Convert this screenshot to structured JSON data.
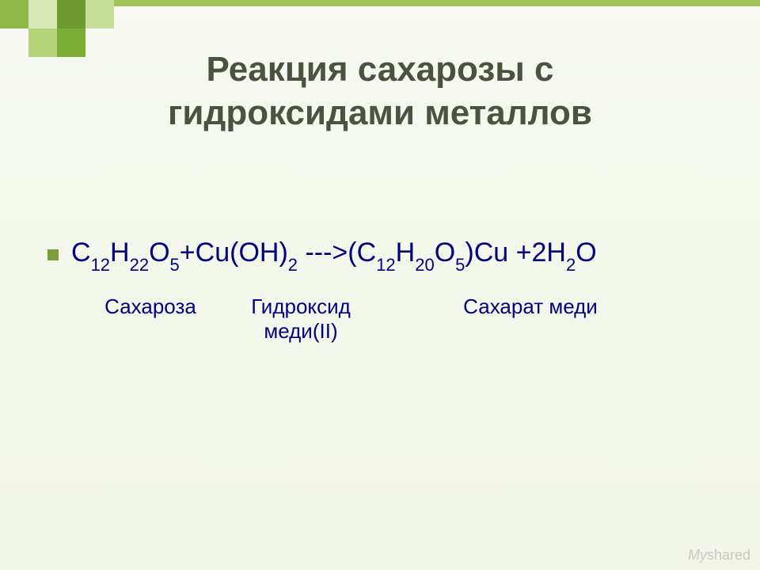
{
  "title_line1": "Реакция сахарозы с",
  "title_line2": "гидроксидами металлов",
  "equation": {
    "parts": {
      "c1": "С",
      "s1": "12",
      "h1": "Н",
      "s2": "22",
      "o1": "О",
      "s3": "5",
      "plus1": "+Cu(OH)",
      "s4": "2",
      "arrow": " --->(",
      "c2": "С",
      "s5": "12",
      "h2": "Н",
      "s6": "20",
      "o2": "О",
      "s7": "5",
      "close": ")Cu +2H",
      "s8": "2",
      "o3": "O"
    }
  },
  "labels": {
    "sucrose": "Сахароза",
    "hydroxide_l1": "Гидроксид",
    "hydroxide_l2": "меди(II)",
    "saccharate": "Сахарат меди"
  },
  "watermark": {
    "my": "My",
    "shared": "shared"
  },
  "colors": {
    "accent_green": "#7a9e3f",
    "title_color": "#4a5240",
    "formula_color": "#010180",
    "bg_top": "#f8faf4",
    "bg_bottom": "#f2f6e8",
    "top_border": "#a0c458"
  }
}
